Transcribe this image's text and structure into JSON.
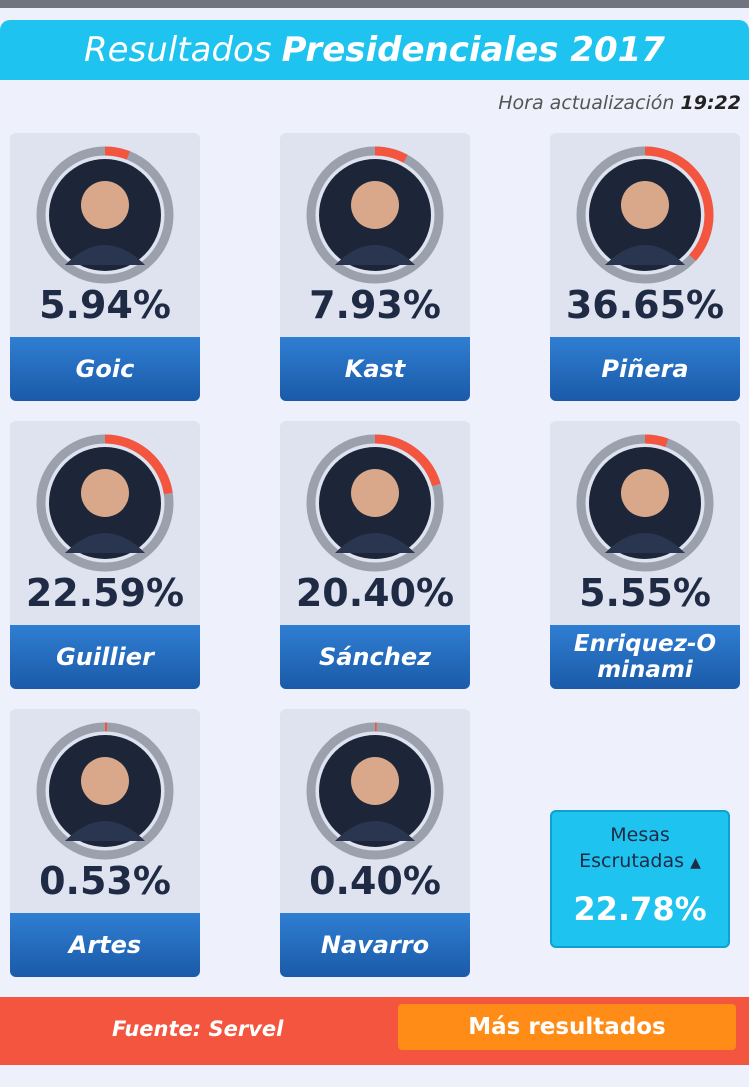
{
  "header": {
    "title_light": "Resultados",
    "title_bold": "Presidenciales 2017"
  },
  "update": {
    "label": "Hora actualización",
    "time": "19:22"
  },
  "colors": {
    "accent": "#1ec3ef",
    "progress": "#f4553f",
    "track": "#9aa0ac",
    "namebar": "#2467bd"
  },
  "candidates": [
    {
      "name": "Goic",
      "percent_label": "5.94%",
      "share": 0.0594,
      "icon": "goic-avatar"
    },
    {
      "name": "Kast",
      "percent_label": "7.93%",
      "share": 0.0793,
      "icon": "kast-avatar"
    },
    {
      "name": "Piñera",
      "percent_label": "36.65%",
      "share": 0.3665,
      "icon": "pinera-avatar"
    },
    {
      "name": "Guillier",
      "percent_label": "22.59%",
      "share": 0.2259,
      "icon": "guillier-avatar"
    },
    {
      "name": "Sánchez",
      "percent_label": "20.40%",
      "share": 0.204,
      "icon": "sanchez-avatar"
    },
    {
      "name": "Enriquez-Ominami",
      "percent_label": "5.55%",
      "share": 0.0555,
      "icon": "enriquez-avatar"
    },
    {
      "name": "Artes",
      "percent_label": "0.53%",
      "share": 0.0053,
      "icon": "artes-avatar"
    },
    {
      "name": "Navarro",
      "percent_label": "0.40%",
      "share": 0.004,
      "icon": "navarro-avatar"
    }
  ],
  "mesas": {
    "label_line1": "Mesas",
    "label_line2": "Escrutadas",
    "value": "22.78%"
  },
  "footer": {
    "source": "Fuente: Servel",
    "more_button": "Más resultados"
  }
}
